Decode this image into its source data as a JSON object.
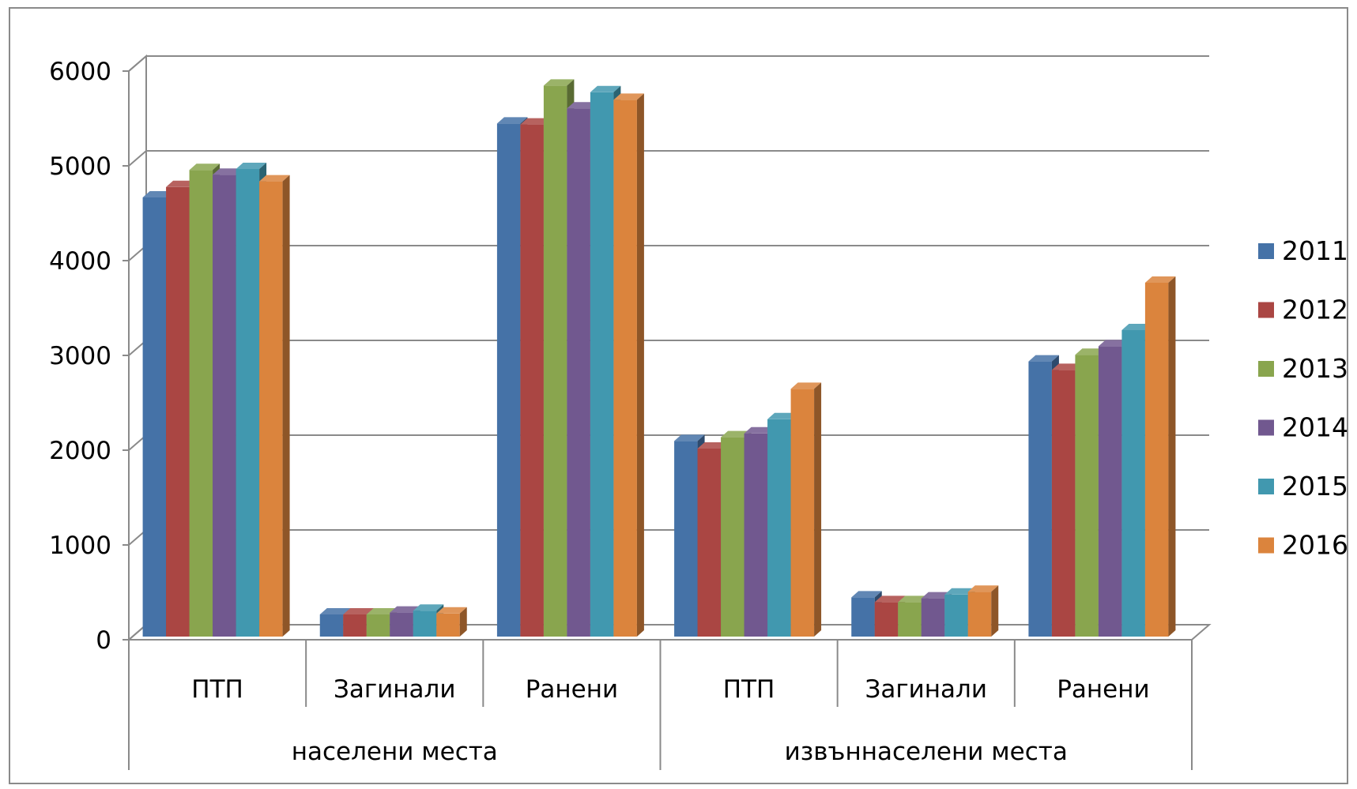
{
  "chart_data": {
    "type": "bar",
    "title": "",
    "xlabel": "",
    "ylabel": "",
    "ylim": [
      0,
      6000
    ],
    "yticks": [
      0,
      1000,
      2000,
      3000,
      4000,
      5000,
      6000
    ],
    "grid": true,
    "legend_position": "right",
    "groups": [
      {
        "label": "населени места",
        "categories": [
          "ПТП",
          "Загинали",
          "Ранени"
        ]
      },
      {
        "label": "извъннаселени места",
        "categories": [
          "ПТП",
          "Загинали",
          "Ранени"
        ]
      }
    ],
    "series": [
      {
        "name": "2011",
        "color": "#4572A7",
        "values": [
          4650,
          250,
          5430,
          2080,
          430,
          2920
        ]
      },
      {
        "name": "2012",
        "color": "#AA4643",
        "values": [
          4760,
          250,
          5420,
          2000,
          380,
          2830
        ]
      },
      {
        "name": "2013",
        "color": "#89A54E",
        "values": [
          4940,
          250,
          5830,
          2120,
          380,
          2990
        ]
      },
      {
        "name": "2014",
        "color": "#71588F",
        "values": [
          4890,
          270,
          5590,
          2160,
          420,
          3080
        ]
      },
      {
        "name": "2015",
        "color": "#4198AF",
        "values": [
          4950,
          290,
          5760,
          2310,
          460,
          3250
        ]
      },
      {
        "name": "2016",
        "color": "#DB843D",
        "values": [
          4820,
          260,
          5680,
          2630,
          490,
          3750
        ]
      }
    ]
  }
}
